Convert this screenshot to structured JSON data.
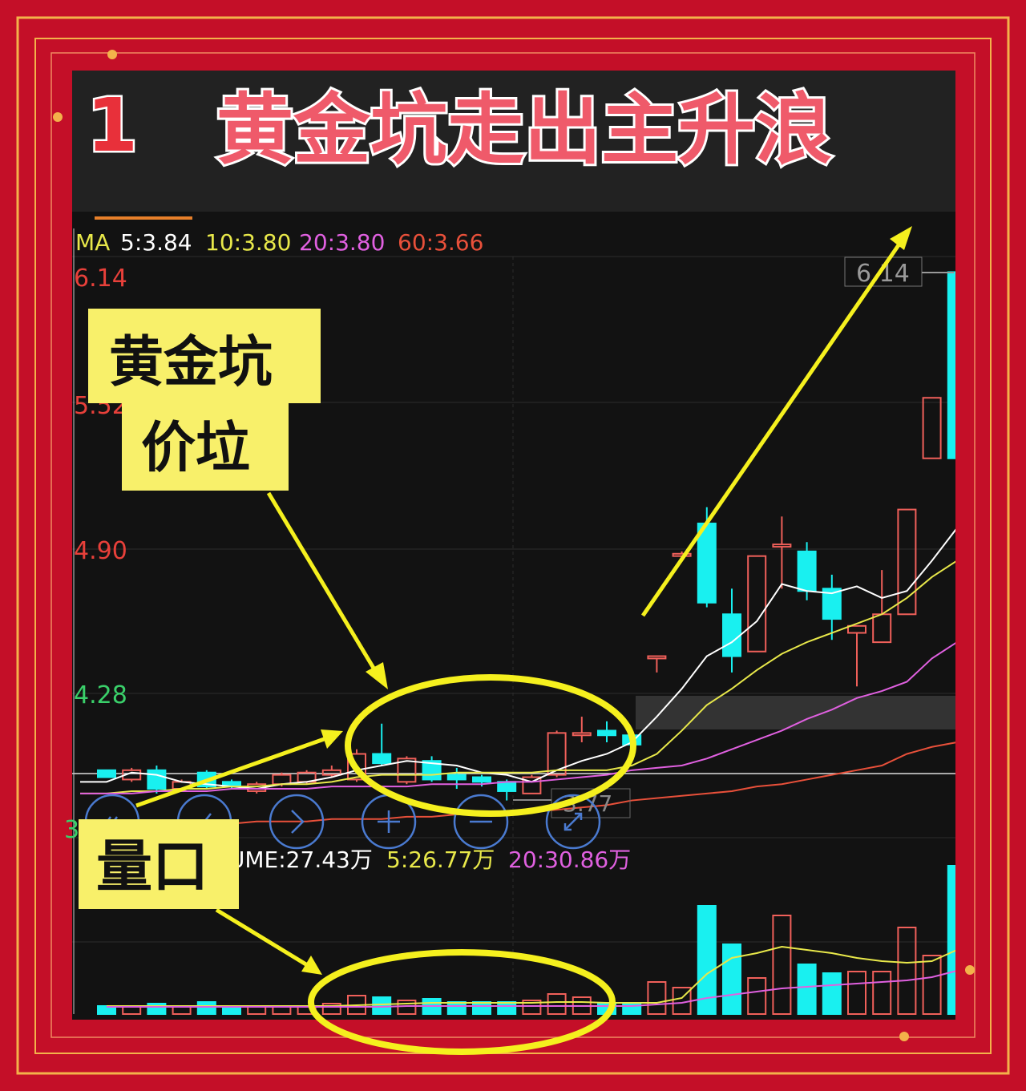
{
  "header": {
    "number": "1",
    "title": "黄金坑走出主升浪"
  },
  "annotations": {
    "box1": "黄金坑",
    "box2": "价垃",
    "box3": "量口",
    "arrow_color": "#f5f01e",
    "box_color": "#f8f06a"
  },
  "ma_legend": {
    "label": "MA",
    "ma5": "5:3.84",
    "ma10": "10:3.80",
    "ma20": "20:3.80",
    "ma60": "60:3.66"
  },
  "vol_legend": {
    "vol": "VOLUME:27.43万",
    "ma5": "5:26.77万",
    "ma20": "20:30.86万"
  },
  "markers": {
    "high": "6.14",
    "low": "3.77"
  },
  "nav_buttons": [
    "back-icon",
    "slash-icon",
    "next-icon",
    "zoom-in-icon",
    "zoom-out-icon",
    "expand-icon"
  ],
  "colors": {
    "up": "#f0605a",
    "down": "#19f0f0",
    "ma5": "#ffffff",
    "ma10": "#e8e84a",
    "ma20": "#e060e0",
    "ma60": "#e8503a",
    "frame": "#c40f28",
    "gold": "#f3b24a"
  },
  "chart_data": {
    "type": "candlestick",
    "y_ticks": [
      "6.14",
      "5.52",
      "4.90",
      "4.28",
      "3.66"
    ],
    "ylim": [
      3.66,
      6.14
    ],
    "grid": true,
    "ohlc": [
      [
        3.95,
        3.95,
        3.92,
        3.92
      ],
      [
        3.91,
        3.96,
        3.9,
        3.95
      ],
      [
        3.95,
        3.97,
        3.85,
        3.87
      ],
      [
        3.87,
        3.91,
        3.86,
        3.9
      ],
      [
        3.94,
        3.95,
        3.87,
        3.88
      ],
      [
        3.9,
        3.91,
        3.87,
        3.88
      ],
      [
        3.86,
        3.9,
        3.85,
        3.89
      ],
      [
        3.89,
        3.94,
        3.88,
        3.93
      ],
      [
        3.9,
        3.95,
        3.89,
        3.94
      ],
      [
        3.93,
        3.97,
        3.92,
        3.95
      ],
      [
        3.91,
        4.04,
        3.9,
        4.02
      ],
      [
        4.02,
        4.15,
        3.97,
        3.98
      ],
      [
        3.9,
        4.01,
        3.89,
        4.0
      ],
      [
        3.99,
        4.01,
        3.9,
        3.91
      ],
      [
        3.93,
        3.96,
        3.87,
        3.91
      ],
      [
        3.92,
        3.93,
        3.88,
        3.9
      ],
      [
        3.9,
        3.91,
        3.82,
        3.86
      ],
      [
        3.85,
        3.93,
        3.85,
        3.92
      ],
      [
        3.93,
        4.12,
        3.92,
        4.11
      ],
      [
        4.1,
        4.18,
        4.07,
        4.11
      ],
      [
        4.12,
        4.16,
        4.07,
        4.1
      ],
      [
        4.1,
        4.11,
        4.05,
        4.06
      ],
      [
        4.43,
        4.44,
        4.37,
        4.44
      ],
      [
        4.87,
        4.89,
        4.85,
        4.88
      ],
      [
        5.01,
        5.08,
        4.65,
        4.67
      ],
      [
        4.62,
        4.73,
        4.37,
        4.44
      ],
      [
        4.46,
        4.87,
        4.46,
        4.87
      ],
      [
        4.91,
        5.04,
        4.73,
        4.92
      ],
      [
        4.89,
        4.93,
        4.68,
        4.72
      ],
      [
        4.73,
        4.79,
        4.51,
        4.6
      ],
      [
        4.54,
        4.57,
        4.31,
        4.57
      ],
      [
        4.5,
        4.81,
        4.5,
        4.62
      ],
      [
        4.62,
        5.07,
        4.62,
        5.07
      ],
      [
        5.29,
        5.55,
        5.29,
        5.55
      ],
      [
        6.09,
        6.14,
        5.29,
        5.29
      ]
    ],
    "ma5": [
      3.9,
      3.94,
      3.93,
      3.9,
      3.89,
      3.88,
      3.87,
      3.89,
      3.9,
      3.92,
      3.95,
      3.97,
      3.99,
      3.98,
      3.97,
      3.94,
      3.93,
      3.9,
      3.95,
      3.99,
      4.02,
      4.07,
      4.18,
      4.3,
      4.44,
      4.5,
      4.59,
      4.75,
      4.72,
      4.71,
      4.74,
      4.69,
      4.72,
      4.85,
      4.99
    ],
    "ma10": [
      3.85,
      3.86,
      3.86,
      3.87,
      3.87,
      3.88,
      3.88,
      3.89,
      3.89,
      3.9,
      3.92,
      3.93,
      3.93,
      3.93,
      3.94,
      3.94,
      3.94,
      3.94,
      3.95,
      3.95,
      3.95,
      3.97,
      4.02,
      4.12,
      4.23,
      4.3,
      4.38,
      4.45,
      4.5,
      4.54,
      4.58,
      4.62,
      4.69,
      4.78,
      4.85
    ],
    "ma20": [
      3.85,
      3.85,
      3.86,
      3.86,
      3.86,
      3.87,
      3.87,
      3.87,
      3.87,
      3.88,
      3.88,
      3.88,
      3.88,
      3.89,
      3.89,
      3.89,
      3.9,
      3.9,
      3.91,
      3.92,
      3.93,
      3.95,
      3.96,
      3.97,
      4.0,
      4.04,
      4.08,
      4.12,
      4.17,
      4.21,
      4.26,
      4.29,
      4.33,
      4.43,
      4.5
    ],
    "ma60": [
      3.71,
      3.71,
      3.71,
      3.72,
      3.72,
      3.72,
      3.73,
      3.73,
      3.73,
      3.74,
      3.74,
      3.74,
      3.75,
      3.75,
      3.76,
      3.76,
      3.77,
      3.77,
      3.78,
      3.79,
      3.8,
      3.82,
      3.83,
      3.84,
      3.85,
      3.86,
      3.88,
      3.89,
      3.91,
      3.93,
      3.95,
      3.97,
      4.02,
      4.05,
      4.07
    ],
    "volume_unit": "万",
    "volume": [
      5,
      5,
      6.5,
      4.5,
      7.5,
      5,
      5,
      5,
      5,
      6.5,
      11.5,
      10.5,
      8.5,
      9.5,
      7.5,
      7.5,
      7.5,
      8.5,
      12.5,
      10.5,
      6.5,
      6.5,
      20,
      16.5,
      67.5,
      43.5,
      22.5,
      61.5,
      31,
      25.5,
      26.5,
      26.5,
      54,
      36.5,
      92.5
    ],
    "vol_ma5": [
      5,
      5,
      5,
      5,
      5,
      5,
      5,
      5,
      5,
      5,
      5.5,
      6,
      6.5,
      7,
      7,
      7,
      7,
      7,
      7.5,
      7.5,
      7,
      7,
      7,
      10,
      25,
      35,
      38,
      42,
      40,
      38,
      35,
      33,
      32,
      33,
      40
    ],
    "vol_ma20": [
      4.5,
      4.5,
      4.5,
      4.5,
      4.5,
      4.5,
      4.5,
      4.5,
      4.5,
      4.5,
      4.5,
      4.5,
      5,
      5,
      5,
      5,
      5,
      5,
      5,
      5,
      5,
      5,
      6,
      7,
      10,
      12,
      14,
      16,
      17,
      18,
      19,
      20,
      21,
      23,
      27
    ]
  }
}
